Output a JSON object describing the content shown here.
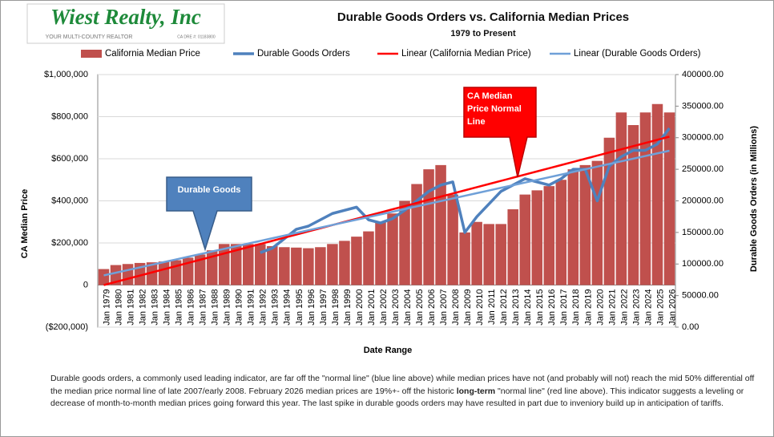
{
  "logo": {
    "name": "Wiest Realty, Inc",
    "tagline": "YOUR MULTI-COUNTY REALTOR",
    "license": "CA DRE #: 01183800"
  },
  "chart_data": {
    "type": "combo",
    "title": "Durable Goods Orders vs. California Median Prices",
    "subtitle": "1979 to Present",
    "ylabel": "CA Median  Price",
    "y2label": "Durable Goods Orders (in Millions)",
    "xlabel": "Date Range",
    "annotations": [
      {
        "text": "Durable Goods",
        "color": "#4f81bd"
      },
      {
        "text": "CA Median Price Normal Line",
        "color": "#ff0000"
      }
    ],
    "categories": [
      "Jan 1979",
      "Jan 1980",
      "Jan 1981",
      "Jan 1982",
      "Jan 1983",
      "Jan 1984",
      "Jan 1985",
      "Jan 1986",
      "Jan 1987",
      "Jan 1988",
      "Jan 1989",
      "Jan 1990",
      "Jan 1991",
      "Jan 1992",
      "Jan 1993",
      "Jan 1994",
      "Jan 1995",
      "Jan 1996",
      "Jan 1997",
      "Jan 1998",
      "Jan 1999",
      "Jan 2000",
      "Jan 2001",
      "Jan 2002",
      "Jan 2003",
      "Jan 2004",
      "Jan 2005",
      "Jan 2006",
      "Jan 2007",
      "Jan 2008",
      "Jan 2009",
      "Jan 2010",
      "Jan 2011",
      "Jan 2012",
      "Jan 2013",
      "Jan 2014",
      "Jan 2015",
      "Jan 2016",
      "Jan 2017",
      "Jan 2018",
      "Jan 2019",
      "Jan 2020",
      "Jan 2021",
      "Jan 2022",
      "Jan 2023",
      "Jan 2024",
      "Jan 2025",
      "Jan 2026"
    ],
    "series": [
      {
        "name": "California Median Price",
        "type": "bar",
        "color": "#c0504d",
        "values": [
          76000,
          95000,
          100000,
          105000,
          108000,
          112000,
          118000,
          130000,
          145000,
          165000,
          195000,
          195000,
          195000,
          195000,
          185000,
          180000,
          178000,
          175000,
          180000,
          195000,
          210000,
          230000,
          255000,
          300000,
          340000,
          400000,
          480000,
          550000,
          570000,
          430000,
          250000,
          300000,
          290000,
          290000,
          360000,
          430000,
          450000,
          470000,
          500000,
          550000,
          570000,
          590000,
          700000,
          820000,
          760000,
          820000,
          860000,
          820000
        ]
      },
      {
        "name": "Durable Goods Orders",
        "type": "line",
        "axis": "y2",
        "color": "#4f81bd",
        "width": 3.5,
        "values": [
          null,
          null,
          null,
          null,
          null,
          null,
          null,
          null,
          null,
          null,
          null,
          null,
          null,
          118000,
          125000,
          140000,
          155000,
          160000,
          170000,
          180000,
          185000,
          190000,
          170000,
          165000,
          172000,
          185000,
          200000,
          215000,
          225000,
          230000,
          150000,
          175000,
          195000,
          215000,
          225000,
          235000,
          230000,
          225000,
          235000,
          250000,
          250000,
          200000,
          255000,
          270000,
          280000,
          280000,
          290000,
          315000
        ]
      },
      {
        "name": "Linear (California Median Price)",
        "type": "line",
        "color": "#ff0000",
        "width": 2.5,
        "values": [
          0,
          15000,
          30000,
          45000,
          60000,
          75000,
          90000,
          105000,
          120000,
          135000,
          150000,
          165000,
          180000,
          195000,
          210000,
          225000,
          240000,
          255000,
          270000,
          285000,
          300000,
          315000,
          330000,
          345000,
          360000,
          375000,
          390000,
          405000,
          420000,
          435000,
          450000,
          465000,
          480000,
          495000,
          510000,
          525000,
          540000,
          555000,
          570000,
          585000,
          600000,
          615000,
          630000,
          645000,
          660000,
          675000,
          690000,
          705000
        ]
      },
      {
        "name": "Linear (Durable Goods Orders)",
        "type": "line",
        "axis": "y2",
        "color": "#6fa0d8",
        "width": 2.5,
        "values": [
          82000,
          86200,
          90400,
          94600,
          98800,
          103000,
          107200,
          111400,
          115600,
          119800,
          124000,
          128200,
          132400,
          136600,
          140800,
          145000,
          149200,
          153400,
          157600,
          161800,
          166000,
          170200,
          174400,
          178600,
          182800,
          187000,
          191200,
          195400,
          199600,
          203800,
          208000,
          212200,
          216400,
          220600,
          224800,
          229000,
          233200,
          237400,
          241600,
          245800,
          250000,
          254200,
          258400,
          262600,
          266800,
          271000,
          275200,
          279400
        ]
      }
    ],
    "ylim": [
      -200000,
      1000000
    ],
    "yticks": [
      {
        "value": -200000,
        "label": "($200,000)"
      },
      0,
      {
        "value": 200000,
        "label": "$200,000"
      },
      {
        "value": 400000,
        "label": "$400,000"
      },
      {
        "value": 600000,
        "label": "$600,000"
      },
      {
        "value": 800000,
        "label": "$800,000"
      },
      {
        "value": 1000000,
        "label": "$1,000,000"
      }
    ],
    "y2lim": [
      0,
      400000
    ],
    "y2ticks": [
      {
        "value": 0,
        "label": "0.00"
      },
      {
        "value": 50000,
        "label": "50000.00"
      },
      {
        "value": 100000,
        "label": "100000.00"
      },
      {
        "value": 150000,
        "label": "150000.00"
      },
      {
        "value": 200000,
        "label": "200000.00"
      },
      {
        "value": 250000,
        "label": "250000.00"
      },
      {
        "value": 300000,
        "label": "300000.00"
      },
      {
        "value": 350000,
        "label": "350000.00"
      },
      {
        "value": 400000,
        "label": "400000.00"
      }
    ],
    "grid": true,
    "legend": "top"
  },
  "footnote": {
    "before": "Durable goods orders, a commonly used leading indicator, are far off the \"normal line\" (blue line above) while median prices have not (and probably will not) reach the mid 50% differential off the median price normal line of late 2007/early 2008. February 2026 median prices are 19%+- off the historic ",
    "bold": "long-term",
    "after": " \"normal line\" (red line above). This indicator suggests a leveling or decrease of month-to-month median prices going forward this year. The last spike in durable goods orders may have resulted in part due to inveniory build up in anticipation of tariffs."
  }
}
